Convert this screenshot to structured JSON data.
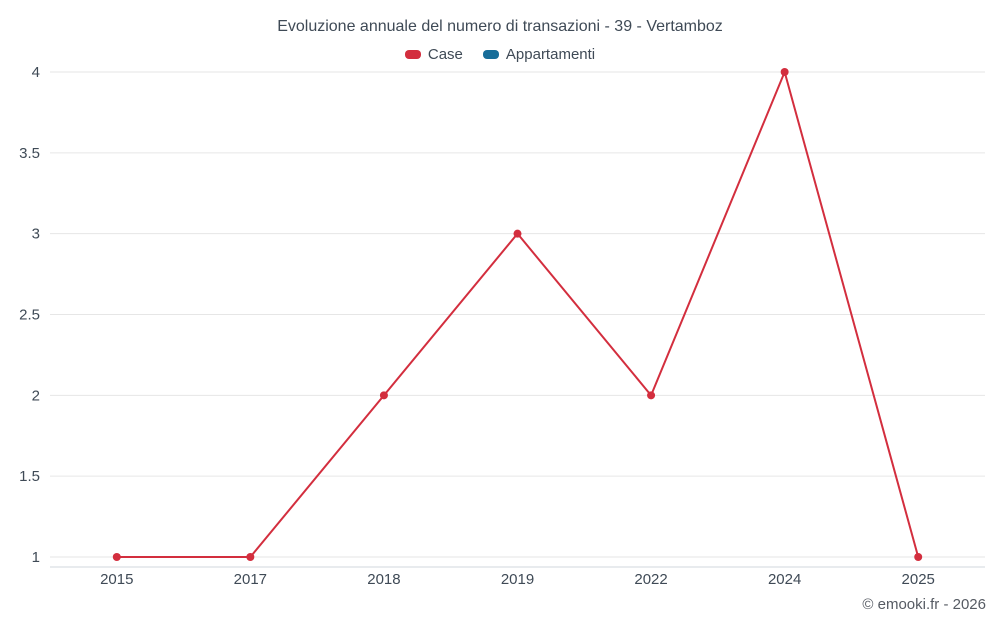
{
  "chart": {
    "title": "Evoluzione annuale del numero di transazioni - 39 - Vertamboz",
    "footer": "© emooki.fr - 2026",
    "legend": [
      {
        "label": "Case",
        "color": "#d32e3e"
      },
      {
        "label": "Appartamenti",
        "color": "#176d99"
      }
    ]
  },
  "chart_data": {
    "type": "line",
    "title": "Evoluzione annuale del numero di transazioni - 39 - Vertamboz",
    "categories": [
      "2015",
      "2017",
      "2018",
      "2019",
      "2022",
      "2024",
      "2025"
    ],
    "series": [
      {
        "name": "Case",
        "color": "#d32e3e",
        "values": [
          1,
          1,
          2,
          3,
          2,
          4,
          1
        ]
      },
      {
        "name": "Appartamenti",
        "color": "#176d99",
        "values": []
      }
    ],
    "xlabel": "",
    "ylabel": "",
    "ylim": [
      1,
      4
    ],
    "yticks": [
      1,
      1.5,
      2,
      2.5,
      3,
      3.5,
      4
    ],
    "grid": true,
    "legend_position": "top",
    "marker": "circle",
    "grid_color": "#e6e6e6",
    "axis_line_color": "#d0d7de",
    "text_color": "#3f4a56"
  }
}
